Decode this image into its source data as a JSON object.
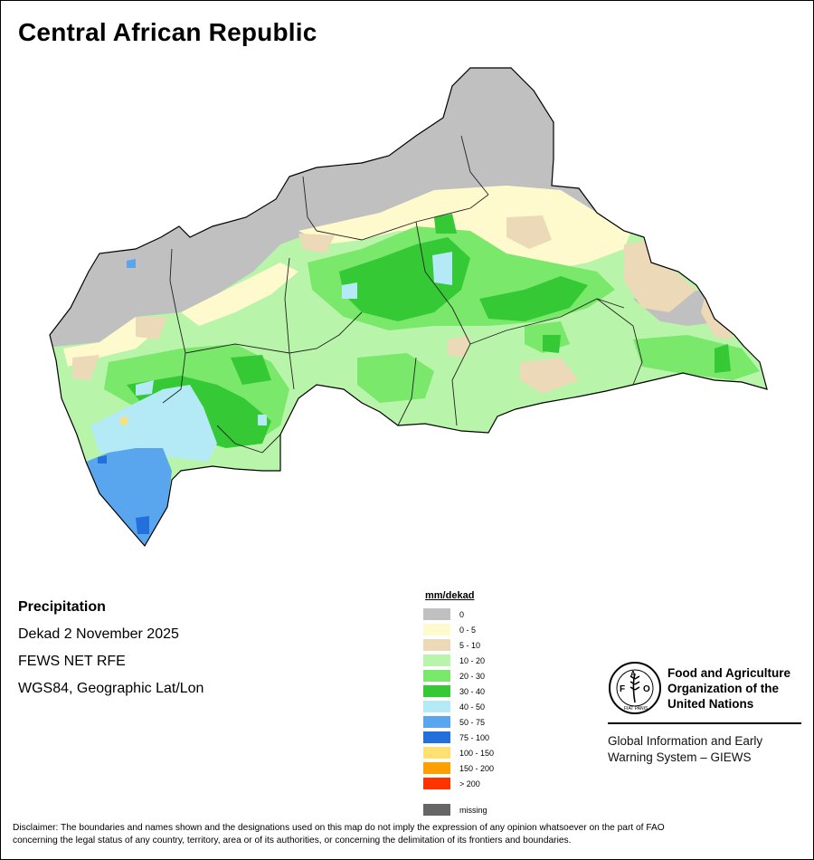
{
  "title": "Central African Republic",
  "info": {
    "heading": "Precipitation",
    "period": "Dekad 2 November 2025",
    "source": "FEWS NET RFE",
    "projection": "WGS84, Geographic Lat/Lon"
  },
  "legend": {
    "title": "mm/dekad",
    "items": [
      {
        "label": "0",
        "color": "#c0c0c0"
      },
      {
        "label": "0 - 5",
        "color": "#fffacd"
      },
      {
        "label": "5 - 10",
        "color": "#ecd9b8"
      },
      {
        "label": "10 - 20",
        "color": "#b8f4aa"
      },
      {
        "label": "20 - 30",
        "color": "#79e86b"
      },
      {
        "label": "30 - 40",
        "color": "#35c935"
      },
      {
        "label": "40 - 50",
        "color": "#b4eaf5"
      },
      {
        "label": "50 - 75",
        "color": "#5aa6ee"
      },
      {
        "label": "75 - 100",
        "color": "#2370dd"
      },
      {
        "label": "100 - 150",
        "color": "#ffe070"
      },
      {
        "label": "150 - 200",
        "color": "#ffa000"
      },
      {
        "label": "> 200",
        "color": "#ff3300"
      }
    ],
    "missing": {
      "label": "missing",
      "color": "#666666"
    }
  },
  "org": {
    "logo_text": "FAO",
    "logo_motto": "FIAT PANIS",
    "name_line1": "Food and Agriculture",
    "name_line2": "Organization of the",
    "name_line3": "United Nations",
    "giews_line1": "Global Information and Early",
    "giews_line2": "Warning System – GIEWS"
  },
  "disclaimer_line1": "Disclaimer: The boundaries and names shown and the designations used on this map do not imply the expression of any opinion whatsoever on the part of FAO",
  "disclaimer_line2": "concerning the legal status of any country, territory, area or of its authorities, or concerning the delimitation of its frontiers and boundaries."
}
